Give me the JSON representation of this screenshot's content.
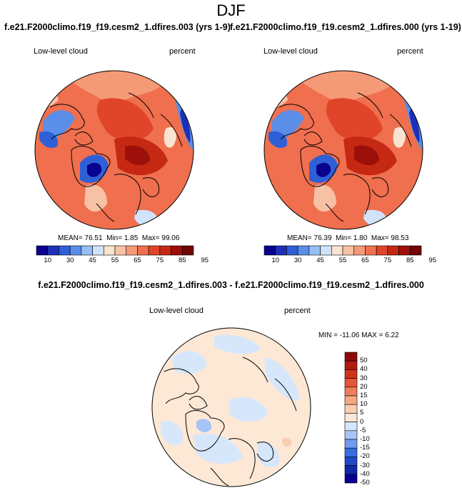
{
  "title": "DJF",
  "colors": {
    "abs_palette": [
      "#08008f",
      "#1c2fb6",
      "#2f5fd6",
      "#5a8ee8",
      "#96bff4",
      "#d0e3fa",
      "#fbe3d1",
      "#f8c1a6",
      "#f59a77",
      "#ef6f4e",
      "#e0452a",
      "#c52914",
      "#9c0f0a",
      "#730606"
    ],
    "diff_palette": [
      "#08008f",
      "#0f28a8",
      "#1f48c8",
      "#3a6ee0",
      "#6f9aee",
      "#a6c4f6",
      "#d6e7fb",
      "#fde8d6",
      "#f9cdb0",
      "#f5a684",
      "#ef7c5a",
      "#e55537",
      "#d0331d",
      "#b01b10",
      "#8c0b08"
    ],
    "coastline": "#000000"
  },
  "chart_data": [
    {
      "type": "heatmap",
      "projection": "north-polar-stereographic",
      "title": "f.e21.F2000climo.f19_f19.cesm2_1.dfires.003 (yrs 1-9)",
      "left_label": "Low-level cloud",
      "right_label": "percent",
      "stats": {
        "mean_label": "MEAN=",
        "mean": "76.51",
        "min_label": "Min=",
        "min": "1.85",
        "max_label": "Max=",
        "max": "99.06"
      },
      "colorbar": {
        "orientation": "horizontal",
        "levels": [
          5,
          10,
          20,
          30,
          40,
          45,
          50,
          55,
          60,
          65,
          70,
          75,
          80,
          85,
          90,
          95
        ],
        "tick_labels": [
          "10",
          "30",
          "45",
          "55",
          "65",
          "75",
          "85",
          "95"
        ]
      }
    },
    {
      "type": "heatmap",
      "projection": "north-polar-stereographic",
      "title": "f.e21.F2000climo.f19_f19.cesm2_1.dfires.000 (yrs 1-19)",
      "left_label": "Low-level cloud",
      "right_label": "percent",
      "stats": {
        "mean_label": "MEAN=",
        "mean": "76.39",
        "min_label": "Min=",
        "min": "1.80",
        "max_label": "Max=",
        "max": "98.53"
      },
      "colorbar": {
        "orientation": "horizontal",
        "levels": [
          5,
          10,
          20,
          30,
          40,
          45,
          50,
          55,
          60,
          65,
          70,
          75,
          80,
          85,
          90,
          95
        ],
        "tick_labels": [
          "10",
          "30",
          "45",
          "55",
          "65",
          "75",
          "85",
          "95"
        ]
      }
    },
    {
      "type": "heatmap",
      "projection": "north-polar-stereographic",
      "title": "f.e21.F2000climo.f19_f19.cesm2_1.dfires.003 - f.e21.F2000climo.f19_f19.cesm2_1.dfires.000",
      "left_label": "Low-level cloud",
      "right_label": "percent",
      "stats": {
        "min_label": "MIN =",
        "min": "-11.06",
        "max_label": "MAX =",
        "max": "6.22"
      },
      "colorbar": {
        "orientation": "vertical",
        "levels": [
          -50,
          -40,
          -30,
          -20,
          -15,
          -10,
          -5,
          0,
          5,
          10,
          15,
          20,
          30,
          40,
          50
        ],
        "tick_labels": [
          "50",
          "40",
          "30",
          "20",
          "15",
          "10",
          "5",
          "0",
          "-5",
          "-10",
          "-15",
          "-20",
          "-30",
          "-40",
          "-50"
        ]
      }
    }
  ]
}
